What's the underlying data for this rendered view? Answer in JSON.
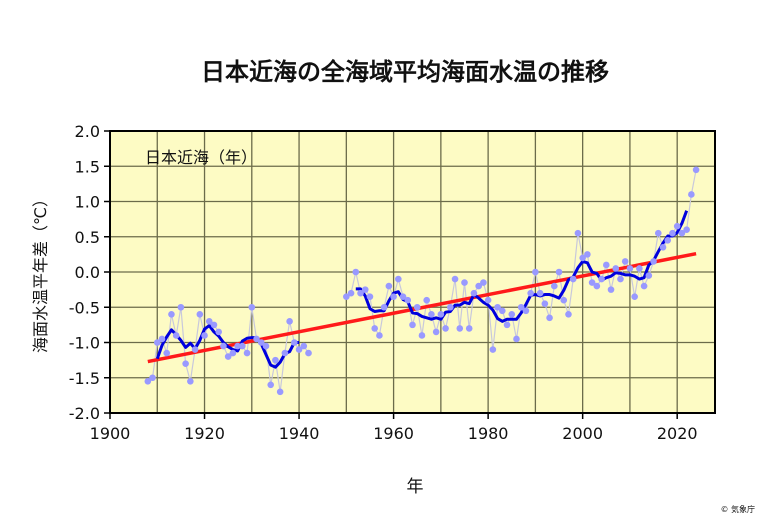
{
  "chart_data": {
    "type": "line",
    "title": "日本近海の全海域平均海面水温の推移",
    "inset_label": "日本近海（年）",
    "xlabel": "年",
    "ylabel": "海面水温平年差（℃）",
    "xlim": [
      1900,
      2028
    ],
    "ylim": [
      -2.0,
      2.0
    ],
    "x_ticks": [
      "1900",
      "1920",
      "1940",
      "1960",
      "1980",
      "2000",
      "2020"
    ],
    "y_ticks": [
      "2.0",
      "1.5",
      "1.0",
      "0.5",
      "0.0",
      "-0.5",
      "-1.0",
      "-1.5",
      "-2.0"
    ],
    "grid": true,
    "colors": {
      "background": "#fdfbc4",
      "annual": "#9999ff",
      "smoothed": "#0000dd",
      "trend": "#ff1a1a",
      "grid": "#6b6b4a"
    },
    "series": [
      {
        "name": "annual",
        "start_year": 1908,
        "values": [
          -1.55,
          -1.5,
          -1.0,
          -0.95,
          -1.15,
          -0.6,
          -0.9,
          -0.5,
          -1.3,
          -1.55,
          -1.1,
          -0.6,
          -0.9,
          -0.7,
          -0.75,
          -0.85,
          -1.05,
          -1.2,
          -1.15,
          -1.05,
          -1.05,
          -1.15,
          -0.5,
          -0.95,
          -1.0,
          -1.05,
          -1.6,
          -1.25,
          -1.7,
          -1.15,
          -0.7,
          -1.0,
          -1.1,
          -1.05,
          -1.15,
          null,
          null,
          null,
          null,
          null,
          null,
          null,
          -0.35,
          -0.3,
          0.0,
          -0.3,
          -0.25,
          -0.35,
          -0.8,
          -0.9,
          -0.5,
          -0.2,
          -0.35,
          -0.1,
          -0.35,
          -0.4,
          -0.75,
          -0.5,
          -0.9,
          -0.4,
          -0.6,
          -0.85,
          -0.6,
          -0.8,
          -0.5,
          -0.1,
          -0.8,
          -0.15,
          -0.8,
          -0.3,
          -0.2,
          -0.15,
          -0.4,
          -1.1,
          -0.5,
          -0.55,
          -0.75,
          -0.6,
          -0.95,
          -0.5,
          -0.55,
          -0.3,
          0.0,
          -0.3,
          -0.45,
          -0.65,
          -0.2,
          0.0,
          -0.4,
          -0.6,
          -0.1,
          0.55,
          0.2,
          0.25,
          -0.15,
          -0.2,
          -0.1,
          0.1,
          -0.25,
          0.05,
          -0.1,
          0.15,
          0.05,
          -0.35,
          0.05,
          -0.2,
          -0.05,
          0.15,
          0.55,
          0.35,
          0.45,
          0.55,
          0.65,
          0.55,
          0.6,
          1.1,
          1.45
        ]
      },
      {
        "name": "5-year running mean",
        "window": 5
      },
      {
        "name": "long-term trend",
        "x": [
          1908,
          2024
        ],
        "y": [
          -1.27,
          0.26
        ]
      }
    ]
  },
  "credit": "© 気象庁"
}
